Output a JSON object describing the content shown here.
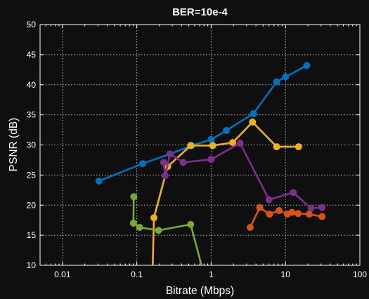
{
  "chart_data": {
    "type": "line",
    "title": "BER=10e-4",
    "xlabel": "Bitrate (Mbps)",
    "ylabel": "PSNR (dB)",
    "xscale": "log",
    "xlim": [
      0.005,
      100
    ],
    "ylim": [
      10,
      50
    ],
    "xticks": [
      0.01,
      0.1,
      1,
      10,
      100
    ],
    "xtick_labels": [
      "0.01",
      "0.1",
      "1",
      "10",
      "100"
    ],
    "yticks": [
      10,
      15,
      20,
      25,
      30,
      35,
      40,
      45,
      50
    ],
    "ytick_labels": [
      "10",
      "15",
      "20",
      "25",
      "30",
      "35",
      "40",
      "45",
      "50"
    ],
    "grid": true,
    "background": "#0f0f0f",
    "series": [
      {
        "color": "#0072bd",
        "points": [
          [
            0.031,
            24.0
          ],
          [
            0.12,
            26.9
          ],
          [
            0.28,
            28.5
          ],
          [
            0.55,
            29.9
          ],
          [
            1.0,
            30.9
          ],
          [
            1.6,
            32.4
          ],
          [
            3.7,
            35.2
          ],
          [
            7.6,
            40.5
          ],
          [
            10.0,
            41.3
          ],
          [
            19.3,
            43.2
          ]
        ]
      },
      {
        "color": "#edb120",
        "points": [
          [
            0.16,
            5.0
          ],
          [
            0.17,
            17.9
          ],
          [
            0.26,
            26.4
          ],
          [
            0.53,
            29.9
          ],
          [
            1.05,
            29.9
          ],
          [
            1.95,
            30.4
          ],
          [
            3.6,
            33.8
          ],
          [
            7.6,
            29.7
          ],
          [
            15.0,
            29.7
          ]
        ]
      },
      {
        "color": "#7e2f8e",
        "points": [
          [
            0.23,
            27.1
          ],
          [
            0.24,
            24.9
          ],
          [
            0.28,
            28.5
          ],
          [
            0.42,
            27.1
          ],
          [
            1.0,
            27.6
          ],
          [
            2.45,
            30.3
          ],
          [
            6.0,
            20.9
          ],
          [
            12.7,
            22.1
          ],
          [
            22.0,
            19.5
          ],
          [
            31.0,
            19.6
          ]
        ]
      },
      {
        "color": "#d95319",
        "points": [
          [
            3.35,
            16.3
          ],
          [
            4.5,
            19.6
          ],
          [
            6.1,
            18.5
          ],
          [
            8.2,
            19.1
          ],
          [
            10.6,
            18.5
          ],
          [
            12.2,
            18.8
          ],
          [
            14.8,
            18.6
          ],
          [
            20.8,
            18.5
          ],
          [
            31.0,
            18.1
          ]
        ]
      },
      {
        "color": "#77ac30",
        "points": [
          [
            0.091,
            21.4
          ],
          [
            0.09,
            17.0
          ],
          [
            0.109,
            16.3
          ],
          [
            0.196,
            15.8
          ],
          [
            0.53,
            16.8
          ],
          [
            0.95,
            5.0
          ]
        ]
      }
    ]
  }
}
